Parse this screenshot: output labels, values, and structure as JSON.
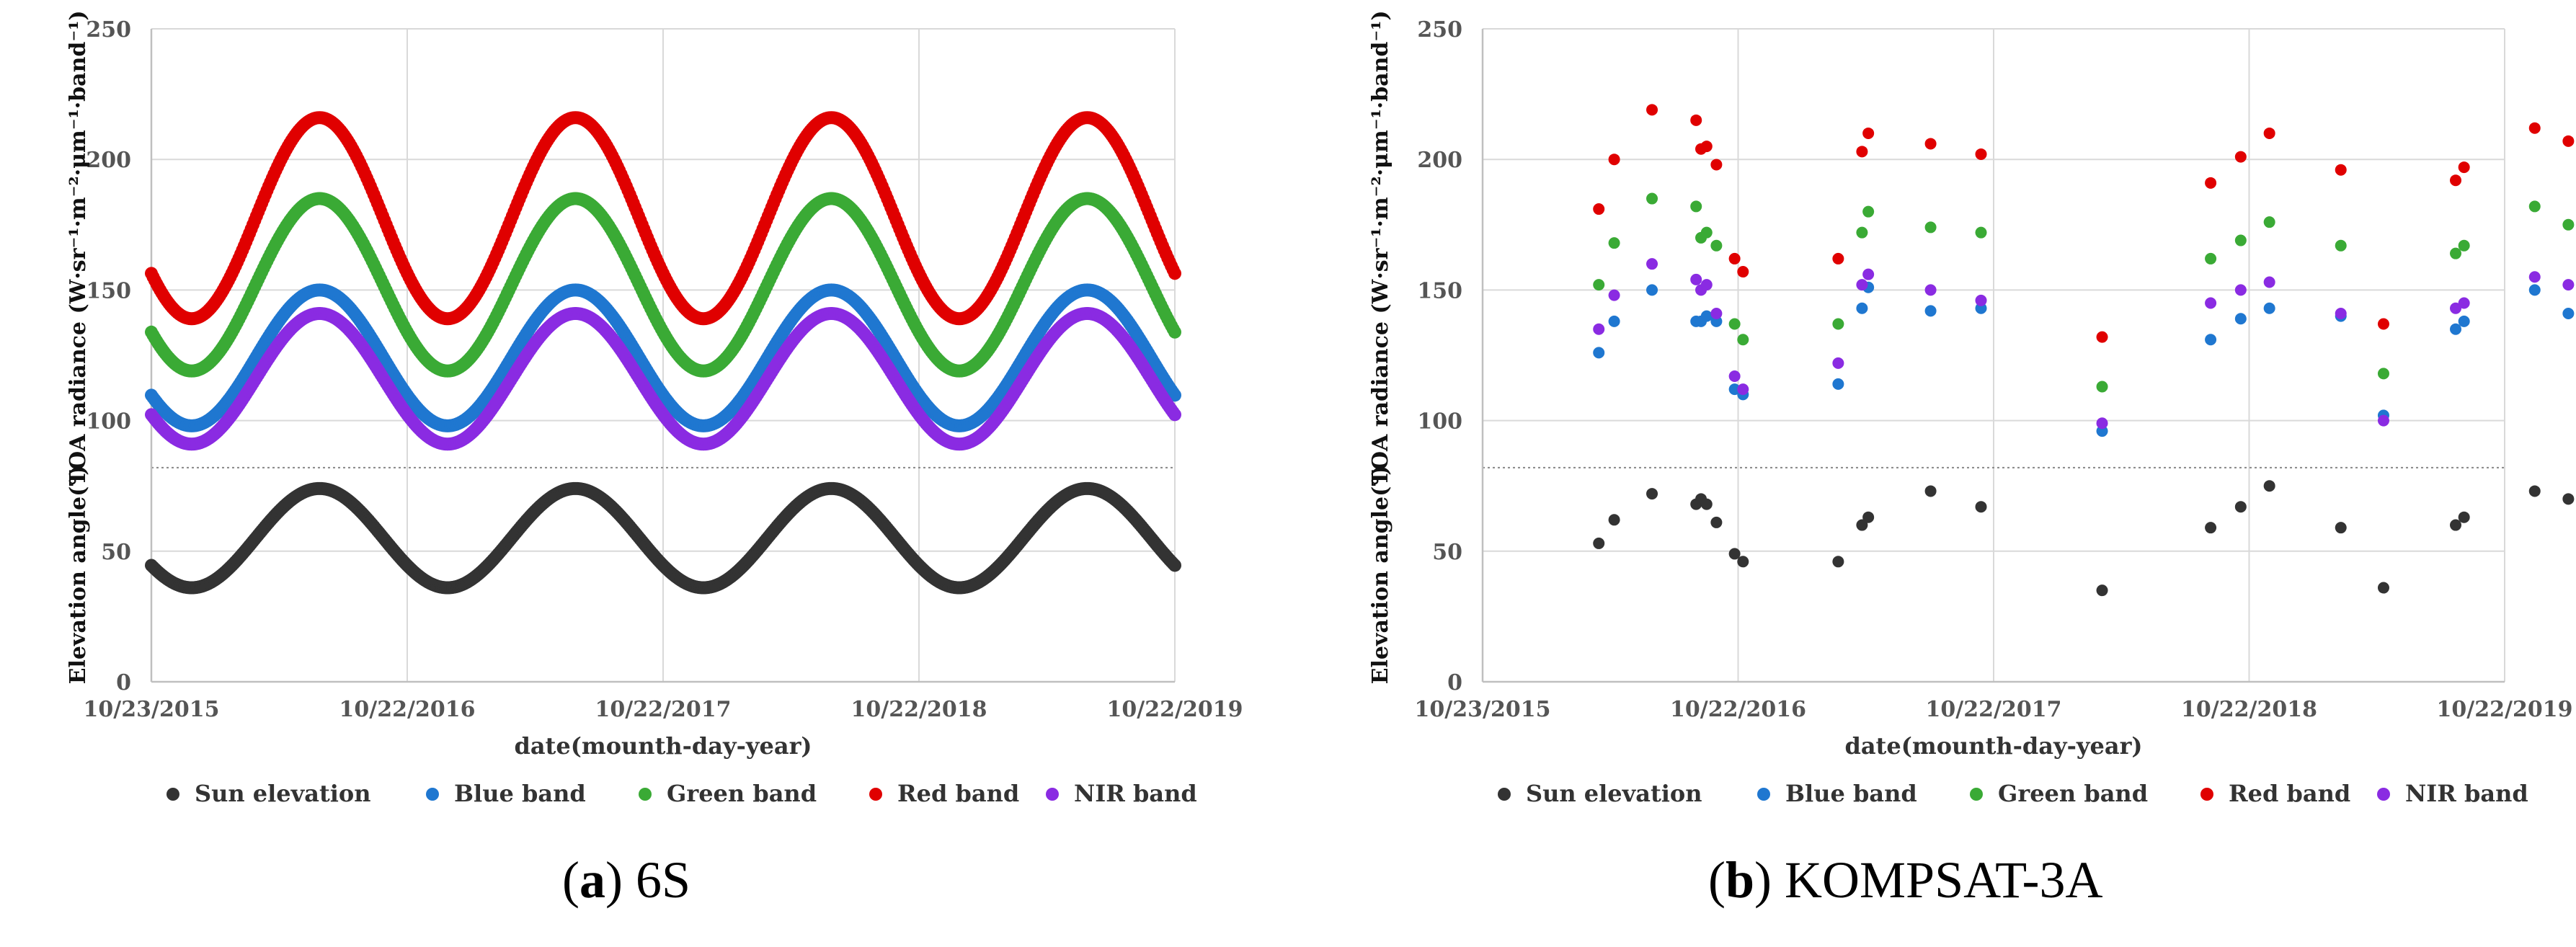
{
  "chart_data": [
    {
      "type": "scatter",
      "panel": "a",
      "caption_label": "a",
      "caption_text": "6S",
      "xlabel": "date(mounth-day-year)",
      "ylabel_top": "TOA radiance (W·sr⁻¹·m⁻²·μm⁻¹·band⁻¹)",
      "ylabel_bottom": "Elevation angle(°)",
      "x_tick_labels": [
        "10/23/2015",
        "10/22/2016",
        "10/22/2017",
        "10/22/2018",
        "10/22/2019"
      ],
      "x_tick_values": [
        0,
        365,
        730,
        1095,
        1460
      ],
      "xlim": [
        0,
        1460
      ],
      "ylim": [
        0,
        250
      ],
      "y_ticks": [
        0,
        50,
        100,
        150,
        200,
        250
      ],
      "separator_y": 82,
      "grid": true,
      "legend_position": "bottom",
      "series": [
        {
          "name": "Sun elevation",
          "color": "#333333",
          "model": {
            "mean": 55,
            "amp": 19,
            "peak_day": 240
          }
        },
        {
          "name": "Blue band",
          "color": "#1f77d0",
          "model": {
            "mean": 124,
            "amp": 26,
            "peak_day": 240
          }
        },
        {
          "name": "Green band",
          "color": "#3aaa35",
          "model": {
            "mean": 152,
            "amp": 33,
            "peak_day": 240
          }
        },
        {
          "name": "Red band",
          "color": "#e00000",
          "model": {
            "mean": 177.5,
            "amp": 38.5,
            "peak_day": 240
          }
        },
        {
          "name": "NIR band",
          "color": "#8a2be2",
          "model": {
            "mean": 116,
            "amp": 25,
            "peak_day": 240
          }
        }
      ]
    },
    {
      "type": "scatter",
      "panel": "b",
      "caption_label": "b",
      "caption_text": "KOMPSAT-3A",
      "xlabel": "date(mounth-day-year)",
      "ylabel_top": "TOA radiance (W·sr⁻¹·m⁻²·μm⁻¹·band⁻¹)",
      "ylabel_bottom": "Elevation angle(°)",
      "x_tick_labels": [
        "10/23/2015",
        "10/22/2016",
        "10/22/2017",
        "10/22/2018",
        "10/22/2019"
      ],
      "x_tick_values": [
        0,
        365,
        730,
        1095,
        1460
      ],
      "xlim": [
        0,
        1460
      ],
      "ylim": [
        0,
        250
      ],
      "y_ticks": [
        0,
        50,
        100,
        150,
        200,
        250
      ],
      "separator_y": 82,
      "grid": true,
      "legend_position": "bottom",
      "x": [
        166,
        188,
        242,
        305,
        312,
        320,
        334,
        360,
        372,
        508,
        542,
        551,
        640,
        712,
        885,
        1040,
        1083,
        1124,
        1226,
        1287,
        1390,
        1402,
        1503,
        1551
      ],
      "series": [
        {
          "name": "Sun elevation",
          "color": "#333333",
          "values": [
            53,
            62,
            72,
            68,
            70,
            68,
            61,
            49,
            46,
            46,
            60,
            63,
            73,
            67,
            35,
            59,
            67,
            75,
            59,
            36,
            60,
            63,
            73,
            70
          ]
        },
        {
          "name": "Blue band",
          "color": "#1f77d0",
          "values": [
            126,
            138,
            150,
            138,
            138,
            140,
            138,
            112,
            110,
            114,
            143,
            151,
            142,
            143,
            96,
            131,
            139,
            143,
            140,
            102,
            135,
            138,
            150,
            141
          ]
        },
        {
          "name": "Green band",
          "color": "#3aaa35",
          "values": [
            152,
            168,
            185,
            182,
            170,
            172,
            167,
            137,
            131,
            137,
            172,
            180,
            174,
            172,
            113,
            162,
            169,
            176,
            167,
            118,
            164,
            167,
            182,
            175
          ]
        },
        {
          "name": "Red band",
          "color": "#e00000",
          "values": [
            181,
            200,
            219,
            215,
            204,
            205,
            198,
            162,
            157,
            162,
            203,
            210,
            206,
            202,
            132,
            191,
            201,
            210,
            196,
            137,
            192,
            197,
            212,
            207
          ]
        },
        {
          "name": "NIR band",
          "color": "#8a2be2",
          "values": [
            135,
            148,
            160,
            154,
            150,
            152,
            141,
            117,
            112,
            122,
            152,
            156,
            150,
            146,
            99,
            145,
            150,
            153,
            141,
            100,
            143,
            145,
            155,
            152
          ]
        }
      ]
    }
  ]
}
